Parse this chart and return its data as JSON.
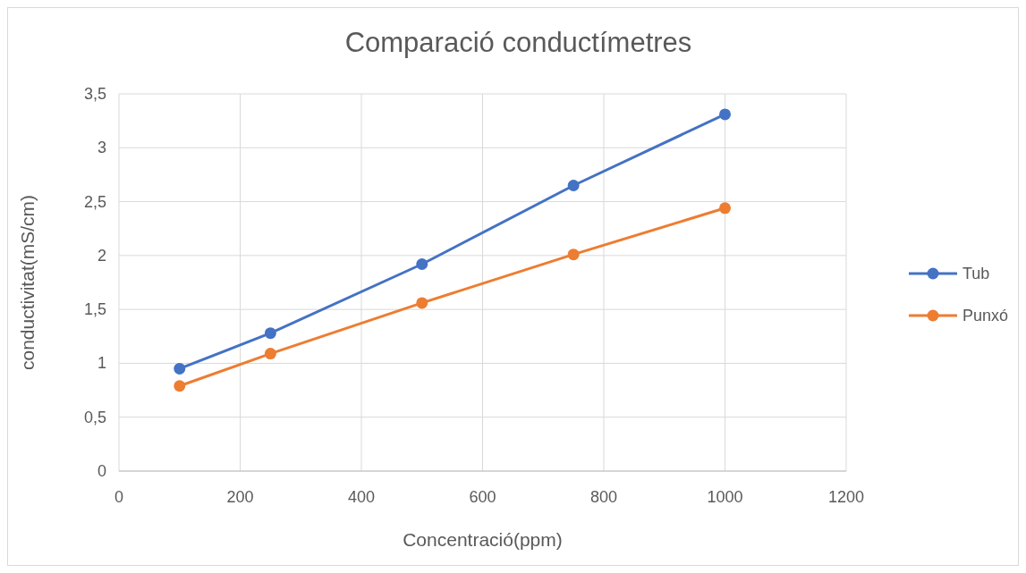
{
  "chart_data": {
    "type": "line",
    "title": "Comparació conductímetres",
    "xlabel": "Concentració(ppm)",
    "ylabel": "conductivitat(mS/cm)",
    "x": [
      100,
      250,
      500,
      750,
      1000
    ],
    "series": [
      {
        "name": "Tub",
        "color": "#4472c4",
        "values": [
          0.95,
          1.28,
          1.92,
          2.65,
          3.31
        ]
      },
      {
        "name": "Punxó",
        "color": "#ed7d31",
        "values": [
          0.79,
          1.09,
          1.56,
          2.01,
          2.44
        ]
      }
    ],
    "xlim": [
      0,
      1200
    ],
    "xticks": [
      0,
      200,
      400,
      600,
      800,
      1000,
      1200
    ],
    "ylim": [
      0,
      3.5
    ],
    "yticks": [
      0,
      {
        "value": 0.5,
        "label": "0,5"
      },
      1,
      {
        "value": 1.5,
        "label": "1,5"
      },
      2,
      {
        "value": 2.5,
        "label": "2,5"
      },
      3,
      {
        "value": 3.5,
        "label": "3,5"
      }
    ],
    "grid": true,
    "legend": "right",
    "marker": "circle",
    "line_style": "solid"
  }
}
